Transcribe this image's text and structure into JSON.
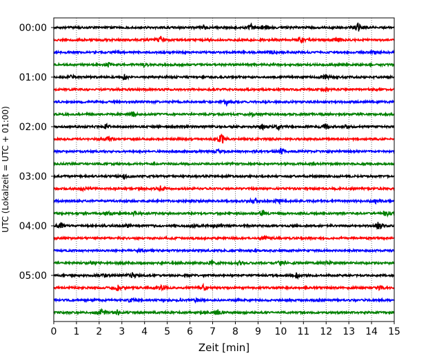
{
  "chart_data": {
    "type": "line",
    "xlabel": "Zeit  [min]",
    "ylabel": "UTC (Lokalzeit = UTC + 01:00)",
    "xlim": [
      0,
      15
    ],
    "x_ticks": [
      "0",
      "1",
      "2",
      "3",
      "4",
      "5",
      "6",
      "7",
      "8",
      "9",
      "10",
      "11",
      "12",
      "13",
      "14",
      "15"
    ],
    "y_tick_labels": [
      "00:00",
      "01:00",
      "02:00",
      "03:00",
      "04:00",
      "05:00"
    ],
    "trace_interval_min": 15,
    "grid": "vertical-dotted",
    "colors": [
      "#000000",
      "#ff0000",
      "#0000ff",
      "#008000"
    ],
    "traces": [
      {
        "start": "00:00",
        "events": [
          [
            6.6,
            0.6
          ],
          [
            8.7,
            0.7
          ],
          [
            9.3,
            0.8
          ],
          [
            13.4,
            0.9
          ]
        ]
      },
      {
        "start": "00:15",
        "events": [
          [
            4.7,
            0.8
          ],
          [
            10.9,
            0.7
          ],
          [
            12.5,
            0.6
          ]
        ]
      },
      {
        "start": "00:30",
        "events": [
          [
            2.8,
            0.3
          ],
          [
            9.6,
            0.3
          ],
          [
            14.0,
            0.3
          ]
        ]
      },
      {
        "start": "00:45",
        "events": [
          [
            2.4,
            0.5
          ],
          [
            4.0,
            0.4
          ]
        ]
      },
      {
        "start": "01:00",
        "events": [
          [
            0.8,
            0.4
          ],
          [
            3.1,
            0.7
          ],
          [
            12.0,
            0.5
          ]
        ]
      },
      {
        "start": "01:15",
        "events": [
          [
            12.0,
            0.3
          ]
        ]
      },
      {
        "start": "01:30",
        "events": [
          [
            7.6,
            0.7
          ]
        ]
      },
      {
        "start": "01:45",
        "events": [
          [
            3.5,
            0.5
          ],
          [
            8.8,
            0.4
          ]
        ]
      },
      {
        "start": "02:00",
        "events": [
          [
            2.3,
            0.5
          ],
          [
            9.2,
            0.6
          ],
          [
            9.9,
            0.5
          ],
          [
            12.0,
            0.5
          ],
          [
            12.9,
            0.4
          ]
        ]
      },
      {
        "start": "02:15",
        "events": [
          [
            2.4,
            0.6
          ],
          [
            7.4,
            1.3
          ]
        ]
      },
      {
        "start": "02:30",
        "events": [
          [
            7.2,
            0.4
          ],
          [
            10.0,
            0.6
          ]
        ]
      },
      {
        "start": "02:45",
        "events": []
      },
      {
        "start": "03:00",
        "events": [
          [
            3.1,
            0.5
          ]
        ]
      },
      {
        "start": "03:15",
        "events": [
          [
            1.3,
            0.3
          ],
          [
            4.7,
            0.5
          ]
        ]
      },
      {
        "start": "03:30",
        "events": [
          [
            8.8,
            0.5
          ],
          [
            9.9,
            0.6
          ],
          [
            14.2,
            0.5
          ]
        ]
      },
      {
        "start": "03:45",
        "events": [
          [
            2.4,
            0.4
          ],
          [
            3.6,
            0.5
          ],
          [
            9.2,
            0.6
          ],
          [
            14.6,
            0.7
          ]
        ]
      },
      {
        "start": "04:00",
        "events": [
          [
            0.3,
            0.6
          ],
          [
            3.2,
            0.4
          ],
          [
            6.1,
            0.3
          ],
          [
            7.1,
            0.4
          ],
          [
            14.3,
            0.9
          ]
        ]
      },
      {
        "start": "04:15",
        "events": [
          [
            9.3,
            0.5
          ]
        ]
      },
      {
        "start": "04:30",
        "events": [
          [
            3.8,
            0.3
          ]
        ]
      },
      {
        "start": "04:45",
        "events": [
          [
            1.8,
            0.3
          ],
          [
            3.0,
            0.3
          ],
          [
            7.0,
            0.5
          ],
          [
            8.2,
            0.4
          ],
          [
            10.0,
            0.4
          ],
          [
            12.0,
            0.5
          ]
        ]
      },
      {
        "start": "05:00",
        "events": [
          [
            2.3,
            0.3
          ],
          [
            3.5,
            0.6
          ],
          [
            10.7,
            0.6
          ]
        ]
      },
      {
        "start": "05:15",
        "events": [
          [
            2.8,
            0.6
          ],
          [
            4.8,
            0.6
          ],
          [
            6.6,
            0.6
          ],
          [
            14.4,
            0.5
          ]
        ]
      },
      {
        "start": "05:30",
        "events": [
          [
            3.4,
            0.5
          ],
          [
            6.3,
            0.3
          ],
          [
            11.7,
            0.3
          ]
        ]
      },
      {
        "start": "05:45",
        "events": [
          [
            2.1,
            0.7
          ],
          [
            2.8,
            0.6
          ],
          [
            7.2,
            0.6
          ]
        ]
      }
    ]
  }
}
